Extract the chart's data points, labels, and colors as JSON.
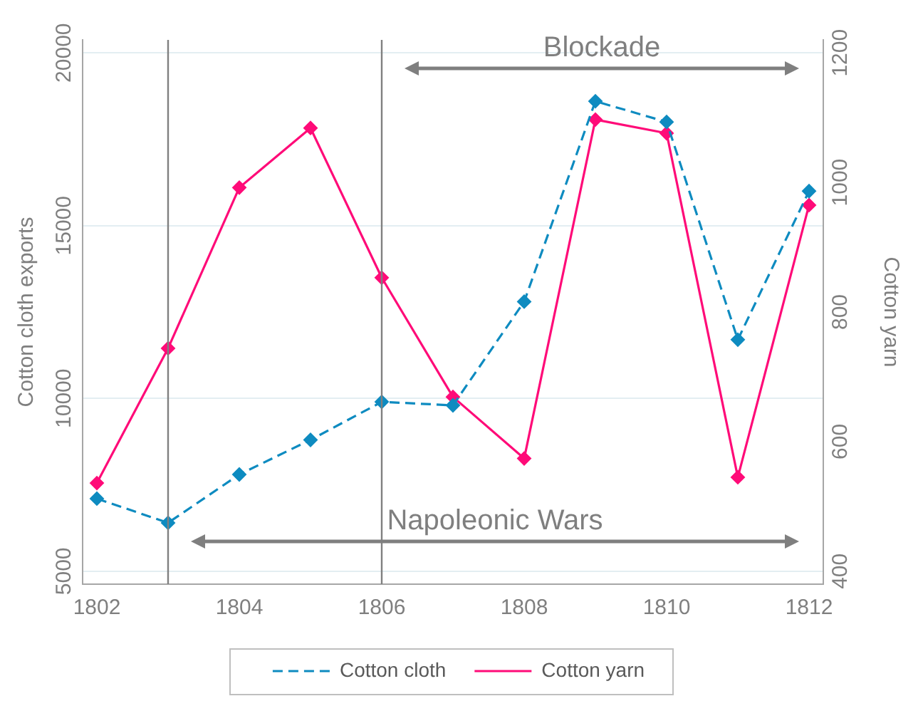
{
  "chart_data": {
    "type": "line",
    "xlabel": null,
    "ylabel": "Cotton cloth exports",
    "y2label": "Cotton yarn",
    "x": [
      1802,
      1803,
      1804,
      1805,
      1806,
      1807,
      1808,
      1809,
      1810,
      1811,
      1812
    ],
    "series": [
      {
        "name": "Cotton cloth",
        "color": "#0e8bc0",
        "line_style": "dashed",
        "values": [
          7100,
          6400,
          7800,
          8800,
          9900,
          9800,
          12800,
          18600,
          18000,
          11700,
          16000
        ]
      },
      {
        "name": "Cotton yarn",
        "color": "#ff0b78",
        "line_style": "solid",
        "axis": "y2",
        "values": [
          536,
          744,
          992,
          1084,
          853,
          669,
          574,
          1097,
          1076,
          545,
          965
        ]
      }
    ],
    "xlim": [
      1801.8,
      1812.2
    ],
    "xticks": [
      1802,
      1804,
      1806,
      1808,
      1810,
      1812
    ],
    "ylim": [
      4625,
      20375
    ],
    "yticks": [
      5000,
      10000,
      15000,
      20000
    ],
    "y2lim": [
      380,
      1220
    ],
    "y2ticks": [
      400,
      600,
      800,
      1000,
      1200
    ],
    "ref_lines": [
      {
        "axis": "x",
        "value": 1806,
        "color": "#808080"
      },
      {
        "axis": "x",
        "value": 1803,
        "color": "#808080"
      }
    ],
    "annotations": [
      "Blockade",
      "Napoleonic Wars"
    ],
    "grid": "y",
    "legend": "bottom",
    "marker": "diamond"
  }
}
